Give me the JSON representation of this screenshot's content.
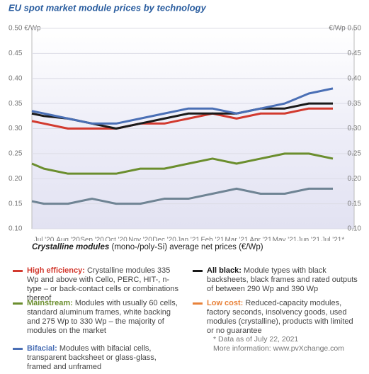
{
  "chart_data": {
    "type": "line",
    "title": "EU spot market module prices  by technology",
    "subtitle_bold": "Crystalline modules",
    "subtitle": "(mono-/poly-Si) average net prices (€/Wp)",
    "categories": [
      null,
      "Jul '20",
      "Aug '20",
      "Sep '20",
      "Oct '20",
      "Nov '20",
      "Dec '20",
      "Jan '21",
      "Feb '21",
      "Mar '21",
      "Apr '21",
      "May '21",
      "Jun '21",
      "Jul '21*"
    ],
    "ylim": [
      0.1,
      0.5
    ],
    "yticks": [
      {
        "value": 0.5,
        "label": "0.50 €/Wp"
      },
      {
        "value": 0.45,
        "label": "0.45"
      },
      {
        "value": 0.4,
        "label": "0.40"
      },
      {
        "value": 0.35,
        "label": "0.35"
      },
      {
        "value": 0.3,
        "label": "0.30"
      },
      {
        "value": 0.25,
        "label": "0.25"
      },
      {
        "value": 0.2,
        "label": "0.20"
      },
      {
        "value": 0.15,
        "label": "0.15"
      },
      {
        "value": 0.1,
        "label": "0.10"
      }
    ],
    "y2lim": [
      0.1,
      0.5
    ],
    "y2ticks": [
      {
        "value": 0.5,
        "label": "€/Wp 0.50"
      },
      {
        "value": 0.45,
        "label": "0.45"
      },
      {
        "value": 0.4,
        "label": "0.40"
      },
      {
        "value": 0.35,
        "label": "0.35"
      },
      {
        "value": 0.3,
        "label": "0.30"
      },
      {
        "value": 0.25,
        "label": "0.25"
      },
      {
        "value": 0.2,
        "label": "0.20"
      },
      {
        "value": 0.15,
        "label": "0.15"
      },
      {
        "value": 0.1,
        "label": "0.10"
      }
    ],
    "grid": true,
    "series": [
      {
        "name": "High efficiency:",
        "color": "#d23a2f",
        "legend_color": "#d23a2f",
        "description": "Crystalline modules 335 Wp and above with Cello, PERC, HIT-, n-type – or back-contact cells or combinations thereof",
        "values": [
          0.315,
          0.31,
          0.3,
          0.3,
          0.3,
          0.31,
          0.31,
          0.32,
          0.33,
          0.32,
          0.33,
          0.33,
          0.34,
          0.34
        ]
      },
      {
        "name": "All black:",
        "color": "#1a1a1a",
        "legend_color": "#1a1a1a",
        "description": "Module types with black backsheets, black frames and rated outputs of between 290 Wp and 390 Wp",
        "values": [
          0.33,
          0.325,
          0.32,
          0.31,
          0.3,
          0.31,
          0.32,
          0.33,
          0.33,
          0.33,
          0.34,
          0.34,
          0.35,
          0.35
        ]
      },
      {
        "name": "Mainstream:",
        "color": "#6b8e2e",
        "legend_color": "#6b8e2e",
        "description": "Modules with usually 60 cells, standard aluminum frames, white backing and 275 Wp to 330 Wp – the majority of modules on the market",
        "values": [
          0.23,
          0.22,
          0.21,
          0.21,
          0.21,
          0.22,
          0.22,
          0.23,
          0.24,
          0.23,
          0.24,
          0.25,
          0.25,
          0.24
        ]
      },
      {
        "name": "Low cost:",
        "color": "#6f8494",
        "legend_color": "#e8823a",
        "description": "Reduced-capacity modules, factory seconds, insolvency goods, used modules (crystalline), products with limited or no guarantee",
        "values": [
          0.155,
          0.15,
          0.15,
          0.16,
          0.15,
          0.15,
          0.16,
          0.16,
          0.17,
          0.18,
          0.17,
          0.17,
          0.18,
          0.18
        ]
      },
      {
        "name": "Bifacial:",
        "color": "#4a6fb5",
        "legend_color": "#4a6fb5",
        "description": "Modules with bifacial cells, transparent backsheet or glass-glass, framed and unframed",
        "values": [
          0.335,
          0.33,
          0.32,
          0.31,
          0.31,
          0.32,
          0.33,
          0.34,
          0.34,
          0.33,
          0.34,
          0.35,
          0.37,
          0.38
        ]
      }
    ],
    "footnote": "* Data as of July 22, 2021",
    "more_info": "More information: www.pvXchange.com"
  }
}
